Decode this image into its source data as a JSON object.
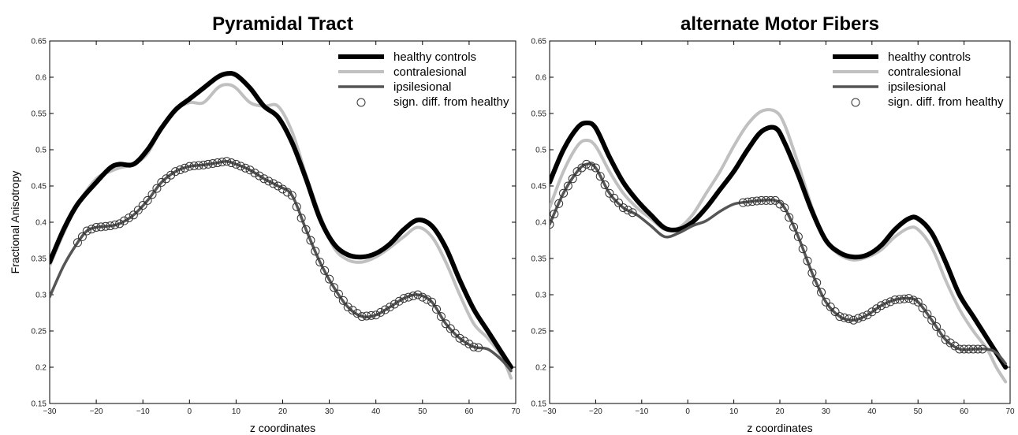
{
  "chart_data": [
    {
      "type": "line",
      "title": "Pyramidal Tract",
      "xlabel": "z coordinates",
      "ylabel": "Fractional Anisotropy",
      "xlim": [
        -30,
        70
      ],
      "ylim": [
        0.15,
        0.65
      ],
      "xticks": [
        "−30",
        "−20",
        "−10",
        "0",
        "10",
        "20",
        "30",
        "40",
        "50",
        "60",
        "70"
      ],
      "yticks": [
        "0.15",
        "0.2",
        "0.25",
        "0.3",
        "0.35",
        "0.4",
        "0.45",
        "0.5",
        "0.55",
        "0.6",
        "0.65"
      ],
      "grid": false,
      "legend_position": "top-right",
      "legend": [
        "healthy controls",
        "contralesional",
        "ipsilesional",
        "sign. diff. from healthy"
      ],
      "series": [
        {
          "name": "healthy controls",
          "color": "#000000",
          "x": [
            -30,
            -27,
            -24,
            -20,
            -17,
            -15,
            -12,
            -9,
            -6,
            -3,
            0,
            3,
            6,
            8,
            10,
            13,
            16,
            19,
            22,
            25,
            28,
            31,
            34,
            37,
            40,
            43,
            46,
            49,
            52,
            55,
            58,
            61,
            64,
            67,
            69
          ],
          "y": [
            0.345,
            0.39,
            0.425,
            0.455,
            0.475,
            0.48,
            0.48,
            0.5,
            0.53,
            0.555,
            0.57,
            0.585,
            0.6,
            0.605,
            0.603,
            0.585,
            0.56,
            0.545,
            0.51,
            0.46,
            0.405,
            0.37,
            0.355,
            0.352,
            0.357,
            0.37,
            0.39,
            0.403,
            0.395,
            0.365,
            0.32,
            0.28,
            0.25,
            0.22,
            0.2
          ]
        },
        {
          "name": "contralesional",
          "color": "#c0c0c0",
          "x": [
            -30,
            -27,
            -24,
            -20,
            -17,
            -15,
            -12,
            -9,
            -6,
            -3,
            0,
            3,
            6,
            8,
            10,
            13,
            16,
            19,
            22,
            25,
            28,
            31,
            34,
            37,
            40,
            43,
            46,
            49,
            52,
            55,
            58,
            61,
            64,
            67,
            69
          ],
          "y": [
            0.34,
            0.385,
            0.425,
            0.46,
            0.47,
            0.475,
            0.48,
            0.495,
            0.53,
            0.555,
            0.565,
            0.565,
            0.585,
            0.59,
            0.585,
            0.565,
            0.56,
            0.56,
            0.525,
            0.465,
            0.41,
            0.365,
            0.348,
            0.345,
            0.352,
            0.365,
            0.38,
            0.393,
            0.38,
            0.345,
            0.3,
            0.26,
            0.24,
            0.215,
            0.185
          ]
        },
        {
          "name": "ipsilesional",
          "color": "#555555",
          "x": [
            -30,
            -27,
            -24,
            -22,
            -20,
            -17,
            -15,
            -12,
            -9,
            -6,
            -3,
            0,
            3,
            6,
            8,
            10,
            13,
            16,
            19,
            22,
            25,
            28,
            31,
            34,
            37,
            40,
            43,
            46,
            49,
            52,
            55,
            58,
            61,
            64,
            67,
            69
          ],
          "y": [
            0.297,
            0.34,
            0.372,
            0.388,
            0.393,
            0.395,
            0.398,
            0.41,
            0.43,
            0.455,
            0.47,
            0.477,
            0.479,
            0.482,
            0.484,
            0.48,
            0.472,
            0.46,
            0.45,
            0.437,
            0.39,
            0.345,
            0.31,
            0.283,
            0.27,
            0.272,
            0.283,
            0.295,
            0.3,
            0.29,
            0.26,
            0.24,
            0.228,
            0.225,
            0.21,
            0.195
          ]
        }
      ],
      "significance": {
        "name": "sign. diff. from healthy",
        "x_range": [
          -24,
          62
        ]
      }
    },
    {
      "type": "line",
      "title": "alternate Motor Fibers",
      "xlabel": "z coordinates",
      "ylabel": "",
      "xlim": [
        -30,
        70
      ],
      "ylim": [
        0.15,
        0.65
      ],
      "xticks": [
        "−30",
        "−20",
        "−10",
        "0",
        "10",
        "20",
        "30",
        "40",
        "50",
        "60",
        "70"
      ],
      "yticks": [
        "0.15",
        "0.2",
        "0.25",
        "0.3",
        "0.35",
        "0.4",
        "0.45",
        "0.5",
        "0.55",
        "0.6",
        "0.65"
      ],
      "grid": false,
      "legend_position": "top-right",
      "legend": [
        "healthy controls",
        "contralesional",
        "ipsilesional",
        "sign. diff. from healthy"
      ],
      "series": [
        {
          "name": "healthy controls",
          "color": "#000000",
          "x": [
            -30,
            -27,
            -24,
            -22,
            -20,
            -17,
            -14,
            -11,
            -8,
            -5,
            -2,
            1,
            4,
            7,
            10,
            13,
            16,
            19,
            21,
            24,
            27,
            30,
            33,
            36,
            39,
            42,
            45,
            48,
            50,
            53,
            56,
            59,
            62,
            65,
            67,
            69
          ],
          "y": [
            0.455,
            0.5,
            0.53,
            0.537,
            0.53,
            0.49,
            0.455,
            0.43,
            0.41,
            0.392,
            0.39,
            0.4,
            0.42,
            0.445,
            0.47,
            0.5,
            0.525,
            0.53,
            0.51,
            0.465,
            0.415,
            0.375,
            0.358,
            0.352,
            0.355,
            0.368,
            0.39,
            0.405,
            0.405,
            0.385,
            0.345,
            0.3,
            0.27,
            0.24,
            0.22,
            0.2
          ]
        },
        {
          "name": "contralesional",
          "color": "#c0c0c0",
          "x": [
            -30,
            -27,
            -24,
            -22,
            -20,
            -17,
            -14,
            -11,
            -8,
            -5,
            -2,
            1,
            4,
            7,
            10,
            13,
            16,
            19,
            21,
            24,
            27,
            30,
            33,
            36,
            39,
            42,
            45,
            48,
            50,
            53,
            56,
            59,
            62,
            65,
            67,
            69
          ],
          "y": [
            0.42,
            0.47,
            0.505,
            0.513,
            0.505,
            0.47,
            0.44,
            0.42,
            0.405,
            0.39,
            0.392,
            0.41,
            0.44,
            0.47,
            0.505,
            0.535,
            0.553,
            0.553,
            0.535,
            0.48,
            0.42,
            0.375,
            0.355,
            0.348,
            0.352,
            0.362,
            0.38,
            0.392,
            0.39,
            0.365,
            0.32,
            0.28,
            0.25,
            0.225,
            0.2,
            0.18
          ]
        },
        {
          "name": "ipsilesional",
          "color": "#555555",
          "x": [
            -30,
            -27,
            -24,
            -22,
            -20,
            -17,
            -14,
            -11,
            -8,
            -5,
            -2,
            1,
            4,
            7,
            10,
            13,
            16,
            19,
            21,
            24,
            27,
            30,
            33,
            36,
            39,
            42,
            45,
            48,
            50,
            53,
            56,
            59,
            62,
            65,
            67,
            69
          ],
          "y": [
            0.397,
            0.44,
            0.47,
            0.48,
            0.475,
            0.44,
            0.42,
            0.41,
            0.395,
            0.38,
            0.385,
            0.395,
            0.402,
            0.415,
            0.425,
            0.428,
            0.43,
            0.43,
            0.42,
            0.38,
            0.33,
            0.29,
            0.27,
            0.265,
            0.272,
            0.285,
            0.293,
            0.295,
            0.29,
            0.265,
            0.238,
            0.225,
            0.225,
            0.225,
            0.22,
            0.205
          ]
        }
      ],
      "significance": {
        "name": "sign. diff. from healthy",
        "x_ranges": [
          [
            -30,
            -12
          ],
          [
            12,
            64
          ]
        ]
      }
    }
  ]
}
